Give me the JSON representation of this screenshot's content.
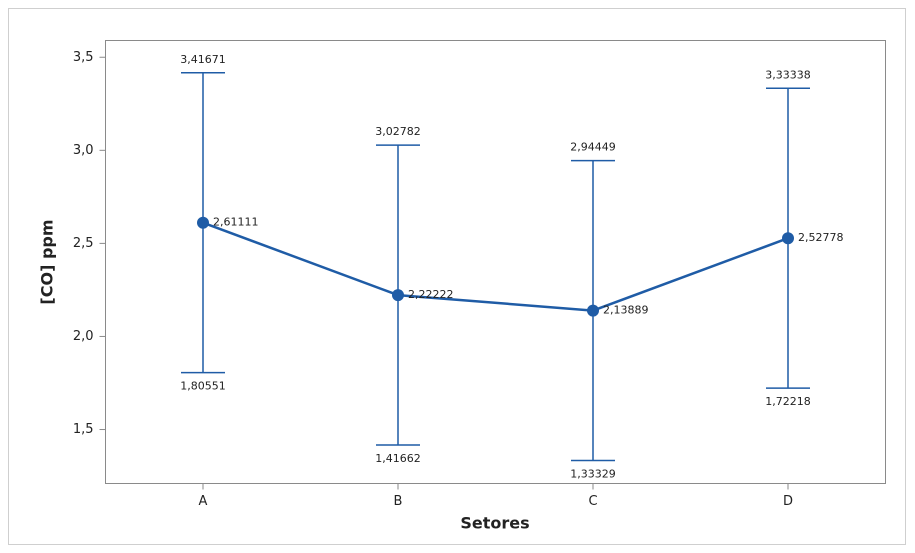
{
  "chart_data": {
    "type": "interval",
    "x_label": "Setores",
    "y_label": "[CO] ppm",
    "categories": [
      "A",
      "B",
      "C",
      "D"
    ],
    "values": [
      2.61111,
      2.22222,
      2.13889,
      2.52778
    ],
    "value_labels": [
      "2,61111",
      "2,22222",
      "2,13889",
      "2,52778"
    ],
    "upper": [
      3.41671,
      3.02782,
      2.94449,
      3.33338
    ],
    "upper_labels": [
      "3,41671",
      "3,02782",
      "2,94449",
      "3,33338"
    ],
    "lower": [
      1.80551,
      1.41662,
      1.33329,
      1.72218
    ],
    "lower_labels": [
      "1,80551",
      "1,41662",
      "1,33329",
      "1,72218"
    ],
    "color": "#1f5ca6",
    "ylim": [
      1.21,
      3.59
    ],
    "yticks": [
      {
        "value": 1.5,
        "label": "1,5"
      },
      {
        "value": 2.0,
        "label": "2,0"
      },
      {
        "value": 2.5,
        "label": "2,5"
      },
      {
        "value": 3.0,
        "label": "3,0"
      },
      {
        "value": 3.5,
        "label": "3,5"
      }
    ],
    "grid": false
  }
}
